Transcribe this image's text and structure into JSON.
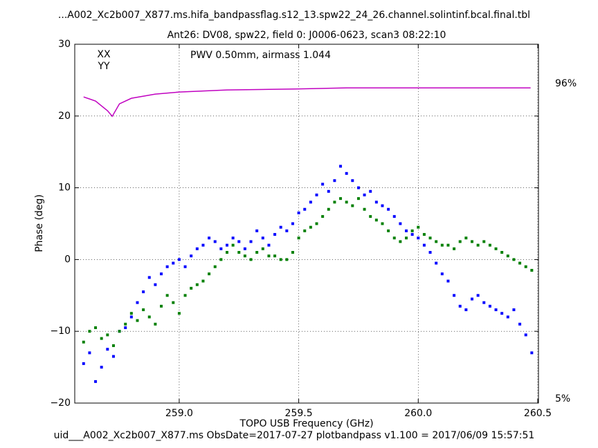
{
  "chart_data": {
    "type": "scatter",
    "title": "...A002_Xc2b007_X877.ms.hifa_bandpassflag.s12_13.spw22_24_26.channel.solintinf.bcal.final.tbl",
    "subtitle": "Ant26: DV08,  spw22,  field 0: J0006-0623,  scan3  08:22:10",
    "annotation": "PWV 0.50mm, airmass 1.044",
    "annotation_color": "#c000c0",
    "x_label": "TOPO USB Frequency (GHz)",
    "y_label": "Phase (deg)",
    "footer": "uid___A002_Xc2b007_X877.ms  ObsDate=2017-07-27   plotbandpass v1.100 = 2017/06/09 15:57:51",
    "xlim": [
      258.563,
      260.503
    ],
    "ylim": [
      -20,
      30
    ],
    "y2lim": [
      3.8,
      107.4
    ],
    "xticks": [
      {
        "value": 259.0,
        "label": "259.0"
      },
      259.5,
      {
        "value": 260.0,
        "label": "260.0"
      },
      260.5
    ],
    "yticks": [
      {
        "value": -20,
        "label": "−20"
      },
      {
        "value": -10,
        "label": "−10"
      },
      0,
      10,
      20,
      30
    ],
    "y2ticks": [
      {
        "value": 96,
        "label": "96%"
      },
      {
        "value": 5,
        "label": "5%"
      }
    ],
    "grid": true,
    "legend": "upper left",
    "x": [
      258.6,
      258.625,
      258.65,
      258.675,
      258.7,
      258.725,
      258.75,
      258.775,
      258.8,
      258.825,
      258.85,
      258.875,
      258.9,
      258.925,
      258.95,
      258.975,
      259.0,
      259.025,
      259.05,
      259.075,
      259.1,
      259.125,
      259.15,
      259.175,
      259.2,
      259.225,
      259.25,
      259.275,
      259.3,
      259.325,
      259.35,
      259.375,
      259.4,
      259.425,
      259.45,
      259.475,
      259.5,
      259.525,
      259.55,
      259.575,
      259.6,
      259.625,
      259.65,
      259.675,
      259.7,
      259.725,
      259.75,
      259.775,
      259.8,
      259.825,
      259.85,
      259.875,
      259.9,
      259.925,
      259.95,
      259.975,
      260.0,
      260.025,
      260.05,
      260.075,
      260.1,
      260.125,
      260.15,
      260.175,
      260.2,
      260.225,
      260.25,
      260.275,
      260.3,
      260.325,
      260.35,
      260.375,
      260.4,
      260.425,
      260.45,
      260.475
    ],
    "series": [
      {
        "name": "XX",
        "color": "#0000ff",
        "values": [
          -14.5,
          -13,
          -17,
          -15,
          -12.5,
          -13.5,
          -10,
          -9.5,
          -8,
          -6,
          -4.5,
          -2.5,
          -3.5,
          -2,
          -1,
          -0.5,
          0,
          -1,
          0.5,
          1.5,
          2,
          3,
          2.5,
          1.5,
          2,
          3,
          2.5,
          1.5,
          2.5,
          4,
          3,
          2,
          3.5,
          4.5,
          4,
          5,
          6.5,
          7,
          8,
          9,
          10.5,
          9.5,
          11,
          13,
          12,
          11,
          10,
          9,
          9.5,
          8,
          7.5,
          7,
          6,
          5,
          4,
          3.5,
          3,
          2,
          1,
          -0.5,
          -2,
          -3,
          -5,
          -6.5,
          -7,
          -5.5,
          -5,
          -6,
          -6.5,
          -7,
          -7.5,
          -8,
          -7,
          -9,
          -10.5,
          -13
        ]
      },
      {
        "name": "YY",
        "color": "#008000",
        "values": [
          -11.5,
          -10,
          -9.5,
          -11,
          -10.5,
          -12,
          -10,
          -9,
          -7.5,
          -8.5,
          -7,
          -8,
          -9,
          -6.5,
          -5,
          -6,
          -7.5,
          -5,
          -4,
          -3.5,
          -3,
          -2,
          -1,
          0,
          1,
          2,
          1,
          0.5,
          0,
          1,
          1.5,
          0.5,
          0.5,
          0,
          0,
          1,
          3,
          4,
          4.5,
          5,
          6,
          7,
          8,
          8.5,
          8,
          7.5,
          8.5,
          7,
          6,
          5.5,
          5,
          4,
          3,
          2.5,
          3,
          4,
          4.5,
          3.5,
          3,
          2.5,
          2,
          2,
          1.5,
          2.5,
          3,
          2.5,
          2,
          2.5,
          2,
          1.5,
          1,
          0.5,
          0,
          -0.5,
          -1,
          -1.5
        ]
      },
      {
        "type": "line",
        "axis": "y2",
        "color": "#c000c0",
        "x": [
          258.6,
          258.65,
          258.7,
          258.72,
          258.75,
          258.8,
          258.9,
          259.0,
          259.2,
          259.5,
          259.7,
          260.0,
          260.2,
          260.47
        ],
        "values": [
          92.2,
          91.0,
          88.2,
          86.6,
          90.2,
          91.8,
          93.0,
          93.6,
          94.2,
          94.5,
          94.8,
          94.8,
          94.8,
          94.8
        ]
      }
    ]
  }
}
